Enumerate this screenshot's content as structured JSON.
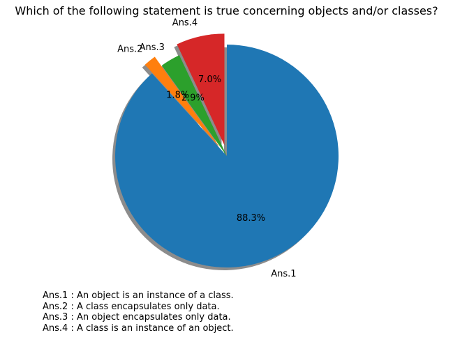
{
  "chart_data": {
    "type": "pie",
    "title": "Which of the following statement is true concerning objects and/or classes?",
    "categories": [
      "Ans.1",
      "Ans.2",
      "Ans.3",
      "Ans.4"
    ],
    "values": [
      88.3,
      1.8,
      2.9,
      7.0
    ],
    "value_labels": [
      "88.3%",
      "1.8%",
      "2.9%",
      "7.0%"
    ],
    "colors": [
      "#1f77b4",
      "#ff7f0e",
      "#2ca02c",
      "#d62728"
    ],
    "explode": [
      0,
      0.1,
      0,
      0.1
    ],
    "shadow": true,
    "start_angle": 90,
    "counterclock": false,
    "legend": "none",
    "notes": [
      "Ans.1 : An object is an instance of a class.",
      "Ans.2 : A class encapsulates only data.",
      "Ans.3 : An object encapsulates only data.",
      "Ans.4 : A class is an instance of an object."
    ]
  }
}
